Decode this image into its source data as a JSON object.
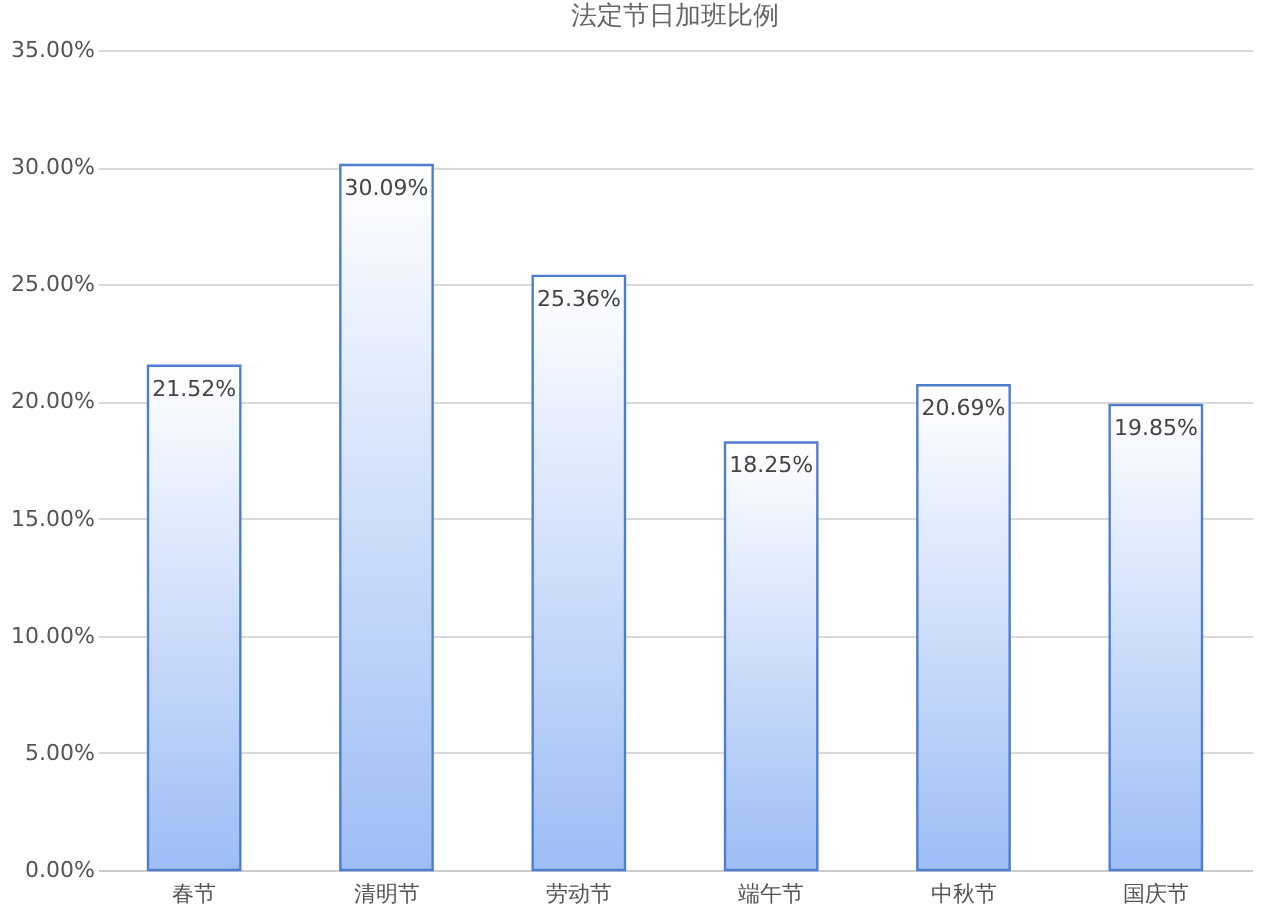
{
  "chart_data": {
    "type": "bar",
    "title": "法定节日加班比例",
    "categories": [
      "春节",
      "清明节",
      "劳动节",
      "端午节",
      "中秋节",
      "国庆节"
    ],
    "values": [
      21.52,
      30.09,
      25.36,
      18.25,
      20.69,
      19.85
    ],
    "value_labels": [
      "21.52%",
      "30.09%",
      "25.36%",
      "18.25%",
      "20.69%",
      "19.85%"
    ],
    "color": "#4f7ed0",
    "ylim": [
      0,
      35
    ],
    "yticks": [
      {
        "value": 0,
        "label": "0.00%"
      },
      {
        "value": 5,
        "label": "5.00%"
      },
      {
        "value": 10,
        "label": "10.00%"
      },
      {
        "value": 15,
        "label": "15.00%"
      },
      {
        "value": 20,
        "label": "20.00%"
      },
      {
        "value": 25,
        "label": "25.00%"
      },
      {
        "value": 30,
        "label": "30.00%"
      },
      {
        "value": 35,
        "label": "35.00%"
      }
    ],
    "grid": "y"
  }
}
